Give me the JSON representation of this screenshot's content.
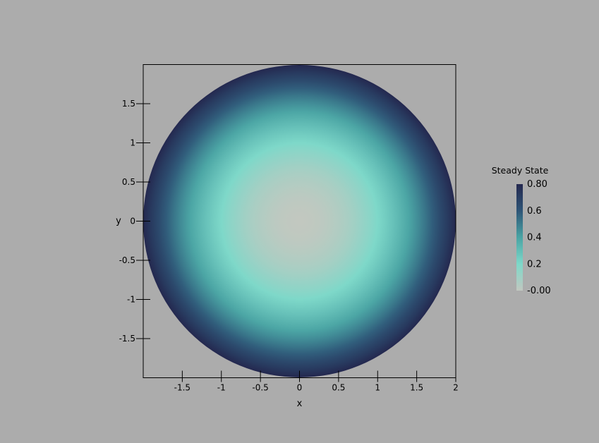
{
  "chart_data": {
    "type": "heatmap",
    "title": "",
    "xlabel": "x",
    "ylabel": "y",
    "xlim": [
      -2,
      2
    ],
    "ylim": [
      -2,
      2
    ],
    "x_ticks": [
      -1.5,
      -1,
      -0.5,
      0,
      0.5,
      1,
      1.5,
      2
    ],
    "x_tick_labels": [
      "-1.5",
      "-1",
      "-0.5",
      "0",
      "0.5",
      "1",
      "1.5",
      "2"
    ],
    "y_ticks": [
      1.5,
      1,
      0.5,
      0,
      -0.5,
      -1,
      -1.5
    ],
    "y_tick_labels": [
      "1.5",
      "1",
      "0.5",
      "0",
      "-0.5",
      "-1",
      "-1.5"
    ],
    "domain": {
      "shape": "disk",
      "center": [
        0,
        0
      ],
      "radius": 2
    },
    "field": "Steady State",
    "field_profile": "0.2*(x^2 + y^2)",
    "value_range": [
      0,
      0.8
    ],
    "grid": false,
    "colorbar": {
      "title": "Steady State",
      "ticks": [
        0.8,
        0.6,
        0.4,
        0.2,
        0
      ],
      "tick_labels": [
        "0.80",
        "0.6",
        "0.4",
        "0.2",
        "-0.00"
      ],
      "colors": [
        "#c2c8c0",
        "#7ed8c9",
        "#4aa4a4",
        "#2e5577",
        "#24284f"
      ],
      "placement": "right"
    },
    "background_color": "#acacac"
  }
}
